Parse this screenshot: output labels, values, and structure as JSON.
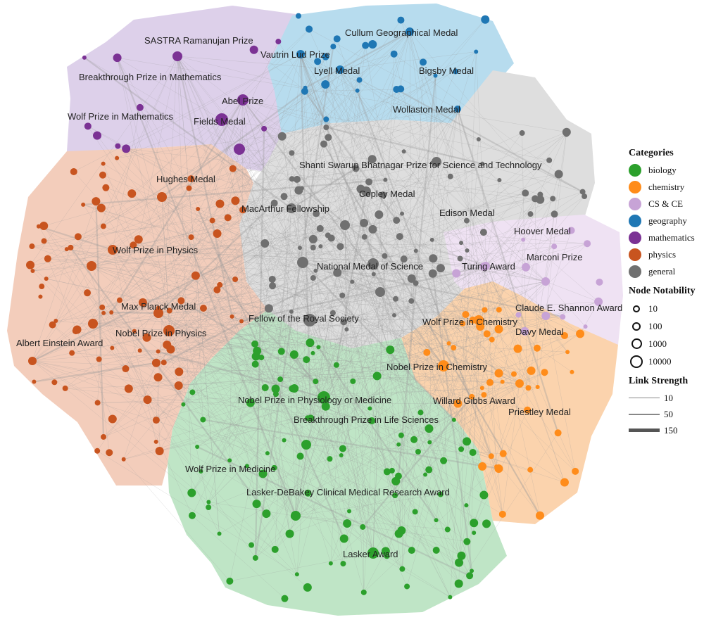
{
  "colors": {
    "biology": "#2ca02c",
    "chemistry": "#ff8c1a",
    "cs_ce": "#c7a3d6",
    "geography": "#1f77b4",
    "mathematics": "#7b3294",
    "physics": "#c8541f",
    "general": "#707070",
    "edge": "#9a9a9a"
  },
  "regions": {
    "mathematics": "#ddd0ea",
    "geography": "#b7dcee",
    "general": "#dedede",
    "physics": "#f3cdbb",
    "cs_ce": "#efe2f3",
    "chemistry": "#fbd3ad",
    "biology": "#bfe5c6"
  },
  "labels": {
    "sastra": "SASTRA Ramanujan Prize",
    "vautrin": "Vautrin Lud Prize",
    "breakthrough_math": "Breakthrough Prize in Mathematics",
    "abel": "Abel Prize",
    "wolf_math": "Wolf Prize in Mathematics",
    "fields": "Fields Medal",
    "cullum": "Cullum Geographical Medal",
    "lyell": "Lyell Medal",
    "bigsby": "Bigsby Medal",
    "wollaston": "Wollaston Medal",
    "bhatnagar": "Shanti Swarup Bhatnagar Prize for Science and Technology",
    "copley": "Copley Medal",
    "macarthur": "MacArthur Fellowship",
    "edison": "Edison Medal",
    "hoover": "Hoover Medal",
    "marconi": "Marconi Prize",
    "turing": "Turing Award",
    "nmos": "National Medal of Science",
    "shannon": "Claude E. Shannon Award",
    "hughes": "Hughes Medal",
    "wolf_physics": "Wolf Prize in Physics",
    "max_planck": "Max Planck Medal",
    "nobel_physics": "Nobel Prize in Physics",
    "einstein": "Albert Einstein Award",
    "frs": "Fellow of the Royal Society",
    "wolf_chem": "Wolf Prize in Chemistry",
    "davy": "Davy Medal",
    "nobel_chem": "Nobel Prize in Chemistry",
    "gibbs": "Willard Gibbs Award",
    "priestley": "Priestley Medal",
    "nobel_med": "Nobel Prize in Physiology or Medicine",
    "breakthrough_life": "Breakthrough Prize in Life Sciences",
    "wolf_med": "Wolf Prize in Medicine",
    "lasker_debakey": "Lasker-DeBakey Clinical Medical Research Award",
    "lasker": "Lasker Award"
  },
  "legend": {
    "categories_title": "Categories",
    "categories": [
      {
        "label": "biology",
        "color": "#2ca02c"
      },
      {
        "label": "chemistry",
        "color": "#ff8c1a"
      },
      {
        "label": "CS & CE",
        "color": "#c7a3d6"
      },
      {
        "label": "geography",
        "color": "#1f77b4"
      },
      {
        "label": "mathematics",
        "color": "#7b3294"
      },
      {
        "label": "physics",
        "color": "#c8541f"
      },
      {
        "label": "general",
        "color": "#707070"
      }
    ],
    "notability_title": "Node Notability",
    "notability": [
      "10",
      "100",
      "1000",
      "10000"
    ],
    "link_title": "Link Strength",
    "link": [
      "10",
      "50",
      "150"
    ]
  }
}
